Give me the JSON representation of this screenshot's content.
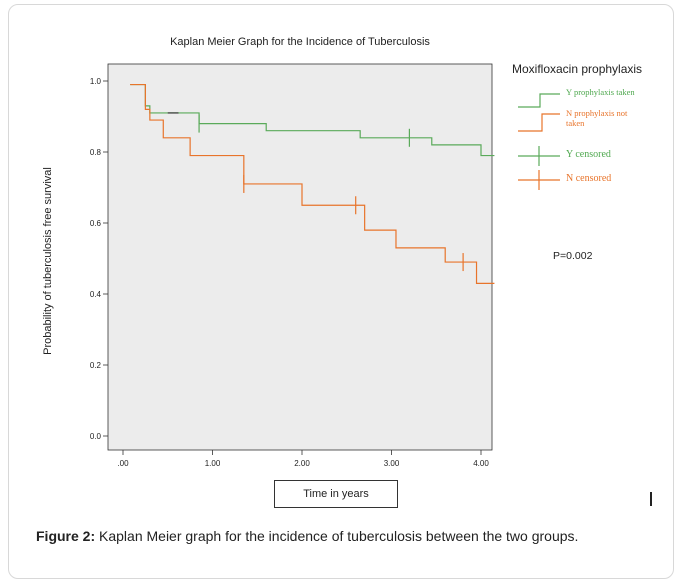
{
  "chart_data": {
    "type": "line",
    "title": "Kaplan Meier Graph for the Incidence of Tuberculosis",
    "xlabel": "Time in years",
    "ylabel": "Probability of tuberculosis  free survival",
    "xlim": [
      0,
      4.2
    ],
    "ylim": [
      0,
      1.0
    ],
    "xticks": [
      ".00",
      "1.00",
      "2.00",
      "3.00",
      "4.00"
    ],
    "xtick_values": [
      0,
      1,
      2,
      3,
      4
    ],
    "yticks": [
      "0.0",
      "0.2",
      "0.4",
      "0.6",
      "0.8",
      "1.0"
    ],
    "ytick_values": [
      0,
      0.2,
      0.4,
      0.6,
      0.8,
      1.0
    ],
    "grid": false,
    "legend_title": "Moxifloxacin prophylaxis",
    "legend_position": "right",
    "series": [
      {
        "name": "Y prophylaxis taken",
        "color": "#5aaa5a",
        "step": true,
        "x": [
          0.08,
          0.25,
          0.3,
          0.85,
          1.6,
          2.65,
          3.45,
          4.0,
          4.15
        ],
        "y": [
          0.99,
          0.93,
          0.91,
          0.88,
          0.86,
          0.84,
          0.82,
          0.79,
          0.79
        ]
      },
      {
        "name": "N prophylaxis not taken",
        "color": "#e8742b",
        "step": true,
        "x": [
          0.08,
          0.25,
          0.3,
          0.45,
          0.75,
          1.35,
          2.0,
          2.7,
          3.05,
          3.6,
          3.95,
          4.15
        ],
        "y": [
          0.99,
          0.92,
          0.89,
          0.84,
          0.79,
          0.71,
          0.65,
          0.58,
          0.53,
          0.49,
          0.43,
          0.43
        ]
      }
    ],
    "censored": [
      {
        "name": "Y censored",
        "color": "#5aaa5a",
        "x": [
          0.85,
          3.2
        ],
        "y": [
          0.88,
          0.84
        ]
      },
      {
        "name": "N censored",
        "color": "#e8742b",
        "x": [
          1.35,
          2.6,
          3.8
        ],
        "y": [
          0.71,
          0.65,
          0.49
        ]
      }
    ],
    "annotation": "P=0.002"
  },
  "legend": {
    "title": "Moxifloxacin prophylaxis",
    "y_taken": "Y prophylaxis taken",
    "n_not_taken_1": "N prophylaxis not",
    "n_not_taken_2": "taken",
    "y_censored": "Y censored",
    "n_censored": "N censored"
  },
  "caption": {
    "label": "Figure 2:",
    "text": " Kaplan Meier graph for the incidence of tuberculosis between the two groups."
  },
  "cursor_text": "I"
}
